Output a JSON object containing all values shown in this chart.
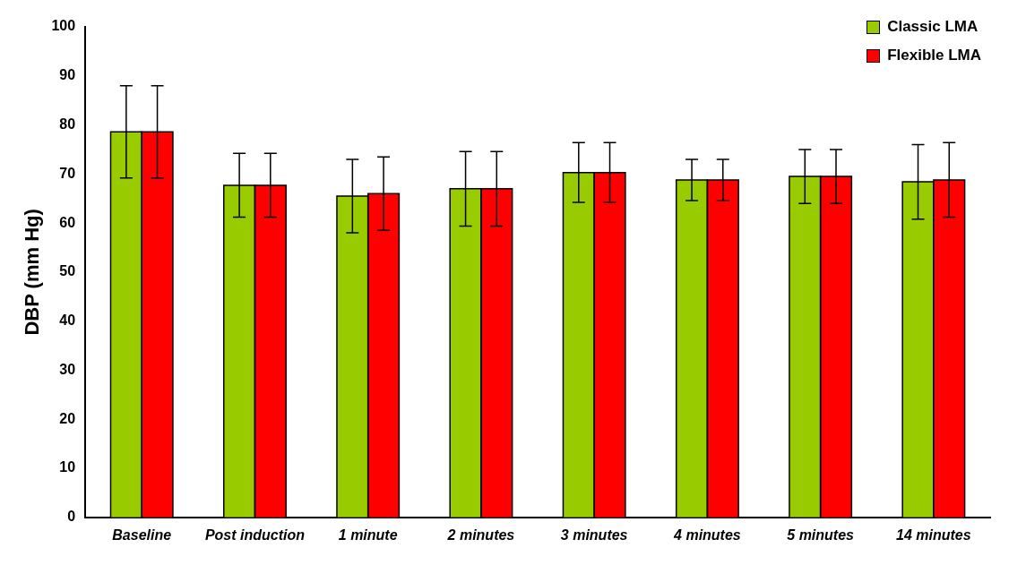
{
  "chart_data": {
    "type": "bar",
    "ylabel": "DBP (mm Hg)",
    "categories": [
      "Baseline",
      "Post induction",
      "1 minute",
      "2 minutes",
      "3 minutes",
      "4 minutes",
      "5 minutes",
      "14 minutes"
    ],
    "series": [
      {
        "name": "Classic LMA",
        "color": "#99cc00",
        "values": [
          78.6,
          67.7,
          65.5,
          67.0,
          70.3,
          68.8,
          69.5,
          68.4
        ],
        "errors": [
          9.4,
          6.5,
          7.5,
          7.6,
          6.1,
          4.2,
          5.5,
          7.6
        ]
      },
      {
        "name": "Flexible LMA",
        "color": "#ff0000",
        "values": [
          78.6,
          67.7,
          66.0,
          67.0,
          70.3,
          68.8,
          69.5,
          68.8
        ],
        "errors": [
          9.4,
          6.5,
          7.5,
          7.6,
          6.1,
          4.2,
          5.5,
          7.6
        ]
      }
    ],
    "ylim": [
      0,
      100
    ],
    "yticks": [
      0,
      10,
      20,
      30,
      40,
      50,
      60,
      70,
      80,
      90,
      100
    ],
    "grid": false,
    "legend": "top right"
  }
}
